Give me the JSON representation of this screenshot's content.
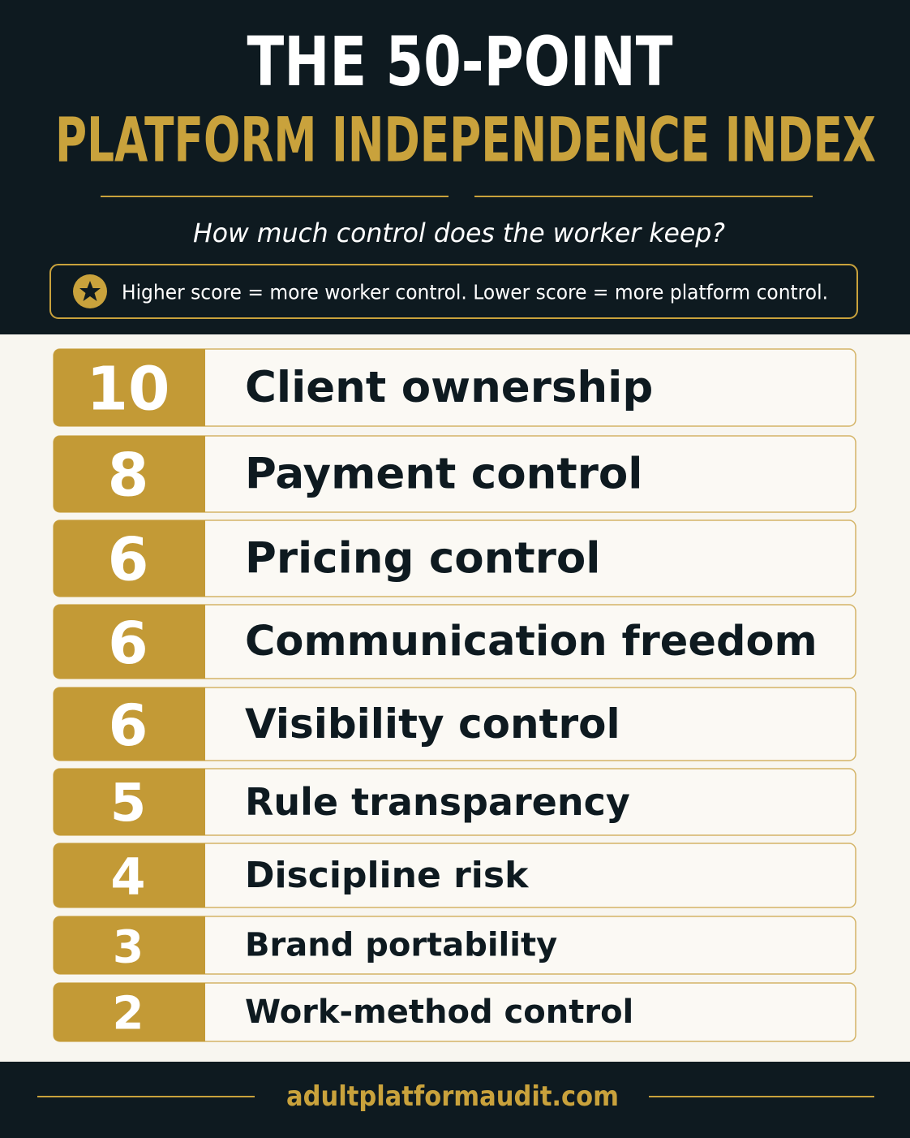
{
  "header": {
    "title_line1": "THE 50-POINT",
    "title_line2": "PLATFORM INDEPENDENCE INDEX",
    "subtitle": "How much control does the worker keep?",
    "note": "Higher score = more worker control. Lower score = more platform control."
  },
  "items": [
    {
      "score": "10",
      "label": "Client ownership"
    },
    {
      "score": "8",
      "label": "Payment control"
    },
    {
      "score": "6",
      "label": "Pricing control"
    },
    {
      "score": "6",
      "label": "Communication freedom"
    },
    {
      "score": "6",
      "label": "Visibility control"
    },
    {
      "score": "5",
      "label": "Rule transparency"
    },
    {
      "score": "4",
      "label": "Discipline risk"
    },
    {
      "score": "3",
      "label": "Brand portability"
    },
    {
      "score": "2",
      "label": "Work-method control"
    }
  ],
  "footer": {
    "site": "adultplatformaudit.com"
  }
}
